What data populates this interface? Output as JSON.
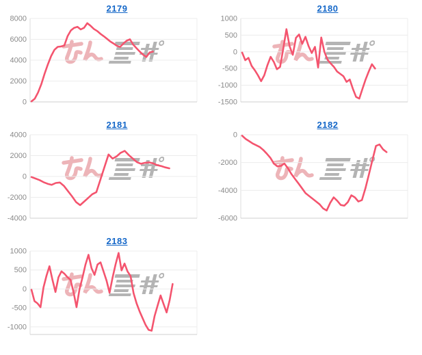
{
  "page": {
    "background": "#ffffff"
  },
  "watermark": {
    "text": "みんかぶ",
    "pink_text": "みん",
    "gray_text": "かぶ"
  },
  "styles": {
    "line_color": "#f4546e",
    "link_color": "#1467c8",
    "grid_color": "#ececec",
    "axis_color": "#cfcfcf",
    "side_axis_color": "#dcdcdc",
    "tick_color": "#8a8a8a",
    "watermark_pink": "#edb4b8",
    "watermark_gray": "#b4b4b4"
  },
  "chart_data": [
    {
      "title": "2179",
      "type": "line",
      "legend": "none",
      "grid": "horizontal",
      "y_ticks": [
        8000,
        6000,
        4000,
        2000,
        0
      ],
      "y_top": 8000,
      "plot_bottom": 0,
      "x_span": 0.74,
      "values": [
        50,
        300,
        900,
        1700,
        2700,
        3600,
        4400,
        5000,
        5280,
        5320,
        5400,
        6300,
        6850,
        7100,
        7200,
        6950,
        7100,
        7550,
        7300,
        7000,
        6800,
        6530,
        6300,
        6050,
        5800,
        5600,
        5380,
        5270,
        5600,
        5870,
        6000,
        5490,
        5150,
        4820,
        4530,
        4310,
        4750,
        4820
      ]
    },
    {
      "title": "2180",
      "type": "line",
      "legend": "none",
      "grid": "horizontal",
      "y_ticks": [
        1000,
        500,
        0,
        -500,
        -1000,
        -1500
      ],
      "y_top": 1000,
      "plot_bottom": -1500,
      "x_span": 0.81,
      "values": [
        -20,
        -250,
        -180,
        -420,
        -550,
        -700,
        -880,
        -700,
        -400,
        -150,
        -300,
        -520,
        -450,
        100,
        680,
        170,
        -90,
        420,
        520,
        240,
        450,
        170,
        -35,
        150,
        -470,
        430,
        0,
        -240,
        -350,
        -450,
        -590,
        -660,
        -730,
        -900,
        -830,
        -1110,
        -1350,
        -1400,
        -1110,
        -830,
        -590,
        -370,
        -500
      ]
    },
    {
      "title": "2181",
      "type": "line",
      "legend": "none",
      "grid": "horizontal",
      "y_ticks": [
        4000,
        2000,
        0,
        -2000,
        -4000
      ],
      "y_top": 4000,
      "plot_bottom": -4000,
      "x_span": 0.84,
      "values": [
        -50,
        -200,
        -350,
        -550,
        -700,
        -800,
        -620,
        -580,
        -900,
        -1400,
        -1900,
        -2450,
        -2750,
        -2400,
        -2050,
        -1700,
        -1500,
        -300,
        900,
        2110,
        1710,
        1930,
        2270,
        2450,
        2050,
        1710,
        1380,
        1220,
        1310,
        1350,
        1260,
        1090,
        1000,
        870,
        780
      ]
    },
    {
      "title": "2182",
      "type": "line",
      "legend": "none",
      "grid": "horizontal",
      "y_ticks": [
        0,
        -2000,
        -4000,
        -6000
      ],
      "y_top": 0,
      "plot_bottom": -6000,
      "x_span": 0.88,
      "values": [
        -70,
        -300,
        -460,
        -630,
        -750,
        -880,
        -1090,
        -1360,
        -1650,
        -2070,
        -2270,
        -2240,
        -2070,
        -2410,
        -2830,
        -3170,
        -3500,
        -3850,
        -4200,
        -4400,
        -4600,
        -4800,
        -5000,
        -5300,
        -5450,
        -4900,
        -4500,
        -4750,
        -5050,
        -5100,
        -4850,
        -4350,
        -4500,
        -4800,
        -4700,
        -3850,
        -2850,
        -1800,
        -800,
        -700,
        -1050,
        -1250
      ]
    },
    {
      "title": "2183",
      "type": "line",
      "legend": "none",
      "grid": "horizontal",
      "y_ticks": [
        1000,
        500,
        0,
        -500,
        -1000
      ],
      "y_top": 1000,
      "plot_bottom": -1200,
      "x_span": 0.86,
      "values": [
        -20,
        -320,
        -380,
        -480,
        40,
        350,
        600,
        240,
        -80,
        310,
        465,
        400,
        310,
        240,
        -80,
        -480,
        0,
        310,
        645,
        900,
        550,
        370,
        645,
        700,
        460,
        220,
        -100,
        300,
        650,
        950,
        490,
        670,
        460,
        340,
        -110,
        -380,
        -590,
        -770,
        -950,
        -1080,
        -1100,
        -710,
        -440,
        -170,
        -400,
        -620,
        -300,
        130
      ]
    }
  ]
}
